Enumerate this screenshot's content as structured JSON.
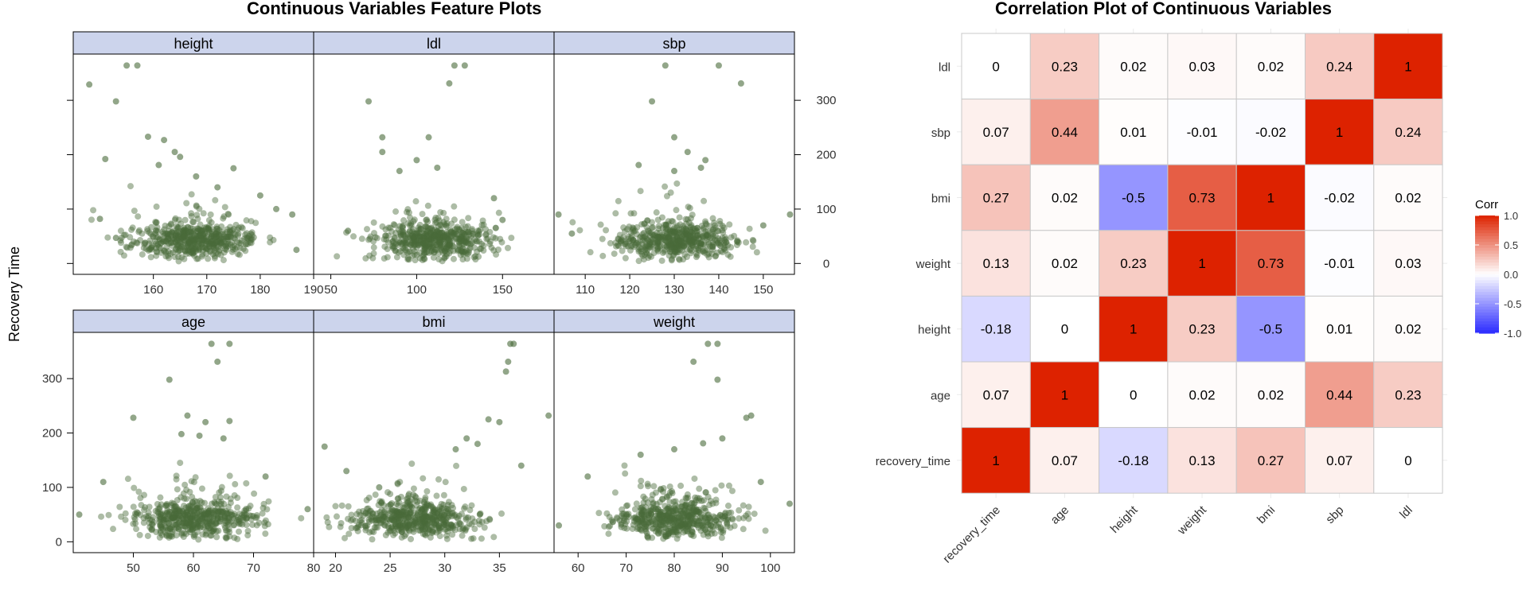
{
  "left_title": "Continuous Variables Feature Plots",
  "right_title": "Correlation Plot of Continuous Variables",
  "chart_data": [
    {
      "type": "scatter",
      "title": "Continuous Variables Feature Plots",
      "ylabel": "Recovery Time",
      "y_ticks": [
        "0",
        "100",
        "200",
        "300"
      ],
      "ylim": [
        -20,
        385
      ],
      "point_color": "#4a6b3a",
      "panels": [
        {
          "name": "height",
          "xlim": [
            145,
            190
          ],
          "x_ticks": [
            160,
            170,
            180,
            190
          ],
          "points": [
            [
              148,
              329
            ],
            [
              151,
              192
            ],
            [
              153,
              298
            ],
            [
              155,
              364
            ],
            [
              157,
              364
            ],
            [
              159,
              233
            ],
            [
              161,
              181
            ],
            [
              162,
              227
            ],
            [
              164,
              205
            ],
            [
              165,
              196
            ],
            [
              150,
              82
            ],
            [
              153,
              47
            ],
            [
              186,
              90
            ],
            [
              183,
              100
            ],
            [
              180,
              125
            ],
            [
              175,
              175
            ],
            [
              172,
              140
            ],
            [
              168,
              160
            ]
          ]
        },
        {
          "name": "ldl",
          "xlim": [
            40,
            180
          ],
          "x_ticks": [
            50,
            100,
            150
          ],
          "points": [
            [
              122,
              364
            ],
            [
              128,
              364
            ],
            [
              119,
              331
            ],
            [
              72,
              298
            ],
            [
              80,
              232
            ],
            [
              80,
              205
            ],
            [
              107,
              232
            ],
            [
              112,
              176
            ],
            [
              100,
              190
            ],
            [
              90,
              170
            ],
            [
              30,
              25
            ],
            [
              150,
              80
            ],
            [
              145,
              120
            ],
            [
              60,
              60
            ]
          ]
        },
        {
          "name": "sbp",
          "xlim": [
            103,
            157
          ],
          "x_ticks": [
            110,
            120,
            130,
            140,
            150
          ],
          "points": [
            [
              128,
              364
            ],
            [
              140,
              364
            ],
            [
              145,
              331
            ],
            [
              125,
              298
            ],
            [
              130,
              232
            ],
            [
              133,
              205
            ],
            [
              122,
              181
            ],
            [
              137,
              190
            ],
            [
              136,
              176
            ],
            [
              130,
              170
            ],
            [
              104,
              90
            ],
            [
              156,
              90
            ],
            [
              150,
              70
            ],
            [
              107,
              55
            ]
          ]
        },
        {
          "name": "age",
          "xlim": [
            40,
            80
          ],
          "x_ticks": [
            50,
            60,
            70,
            80
          ],
          "points": [
            [
              63,
              364
            ],
            [
              66,
              364
            ],
            [
              64,
              331
            ],
            [
              56,
              298
            ],
            [
              50,
              228
            ],
            [
              59,
              232
            ],
            [
              62,
              220
            ],
            [
              66,
              222
            ],
            [
              58,
              198
            ],
            [
              61,
              195
            ],
            [
              65,
              190
            ],
            [
              41,
              50
            ],
            [
              79,
              60
            ],
            [
              45,
              110
            ],
            [
              72,
              120
            ]
          ]
        },
        {
          "name": "bmi",
          "xlim": [
            18,
            40
          ],
          "x_ticks": [
            20,
            25,
            30,
            35
          ],
          "points": [
            [
              36,
              364
            ],
            [
              36.3,
              364
            ],
            [
              35.8,
              331
            ],
            [
              35.6,
              313
            ],
            [
              39.5,
              232
            ],
            [
              34,
              225
            ],
            [
              32,
              190
            ],
            [
              35,
              220
            ],
            [
              33,
              180
            ],
            [
              19,
              175
            ],
            [
              21,
              130
            ],
            [
              31,
              170
            ],
            [
              37,
              140
            ],
            [
              24,
              100
            ]
          ]
        },
        {
          "name": "weight",
          "xlim": [
            55,
            105
          ],
          "x_ticks": [
            60,
            70,
            80,
            90,
            100
          ],
          "points": [
            [
              87,
              364
            ],
            [
              89,
              364
            ],
            [
              84,
              331
            ],
            [
              89,
              298
            ],
            [
              96,
              232
            ],
            [
              95,
              228
            ],
            [
              73,
              160
            ],
            [
              86,
              181
            ],
            [
              90,
              190
            ],
            [
              80,
              170
            ],
            [
              56,
              30
            ],
            [
              104,
              70
            ],
            [
              62,
              120
            ],
            [
              98,
              110
            ]
          ]
        }
      ]
    },
    {
      "type": "heatmap",
      "title": "Correlation Plot of Continuous Variables",
      "x_labels": [
        "recovery_time",
        "age",
        "height",
        "weight",
        "bmi",
        "sbp",
        "ldl"
      ],
      "y_labels_top_to_bottom": [
        "ldl",
        "sbp",
        "bmi",
        "weight",
        "height",
        "age",
        "recovery_time"
      ],
      "values_top_to_bottom": [
        [
          "0",
          "0.23",
          "0.02",
          "0.03",
          "0.02",
          "0.24",
          "1"
        ],
        [
          "0.07",
          "0.44",
          "0.01",
          "-0.01",
          "-0.02",
          "1",
          "0.24"
        ],
        [
          "0.27",
          "0.02",
          "-0.5",
          "0.73",
          "1",
          "-0.02",
          "0.02"
        ],
        [
          "0.13",
          "0.02",
          "0.23",
          "1",
          "0.73",
          "-0.01",
          "0.03"
        ],
        [
          "-0.18",
          "0",
          "1",
          "0.23",
          "-0.5",
          "0.01",
          "0.02"
        ],
        [
          "0.07",
          "1",
          "0",
          "0.02",
          "0.02",
          "0.44",
          "0.23"
        ],
        [
          "1",
          "0.07",
          "-0.18",
          "0.13",
          "0.27",
          "0.07",
          "0"
        ]
      ],
      "legend": {
        "title": "Corr",
        "ticks": [
          "1.0",
          "0.5",
          "0.0",
          "-0.5",
          "-1.0"
        ]
      },
      "colors": {
        "low": "#2b2bff",
        "mid": "#ffffff",
        "high": "#dd2200"
      }
    }
  ]
}
